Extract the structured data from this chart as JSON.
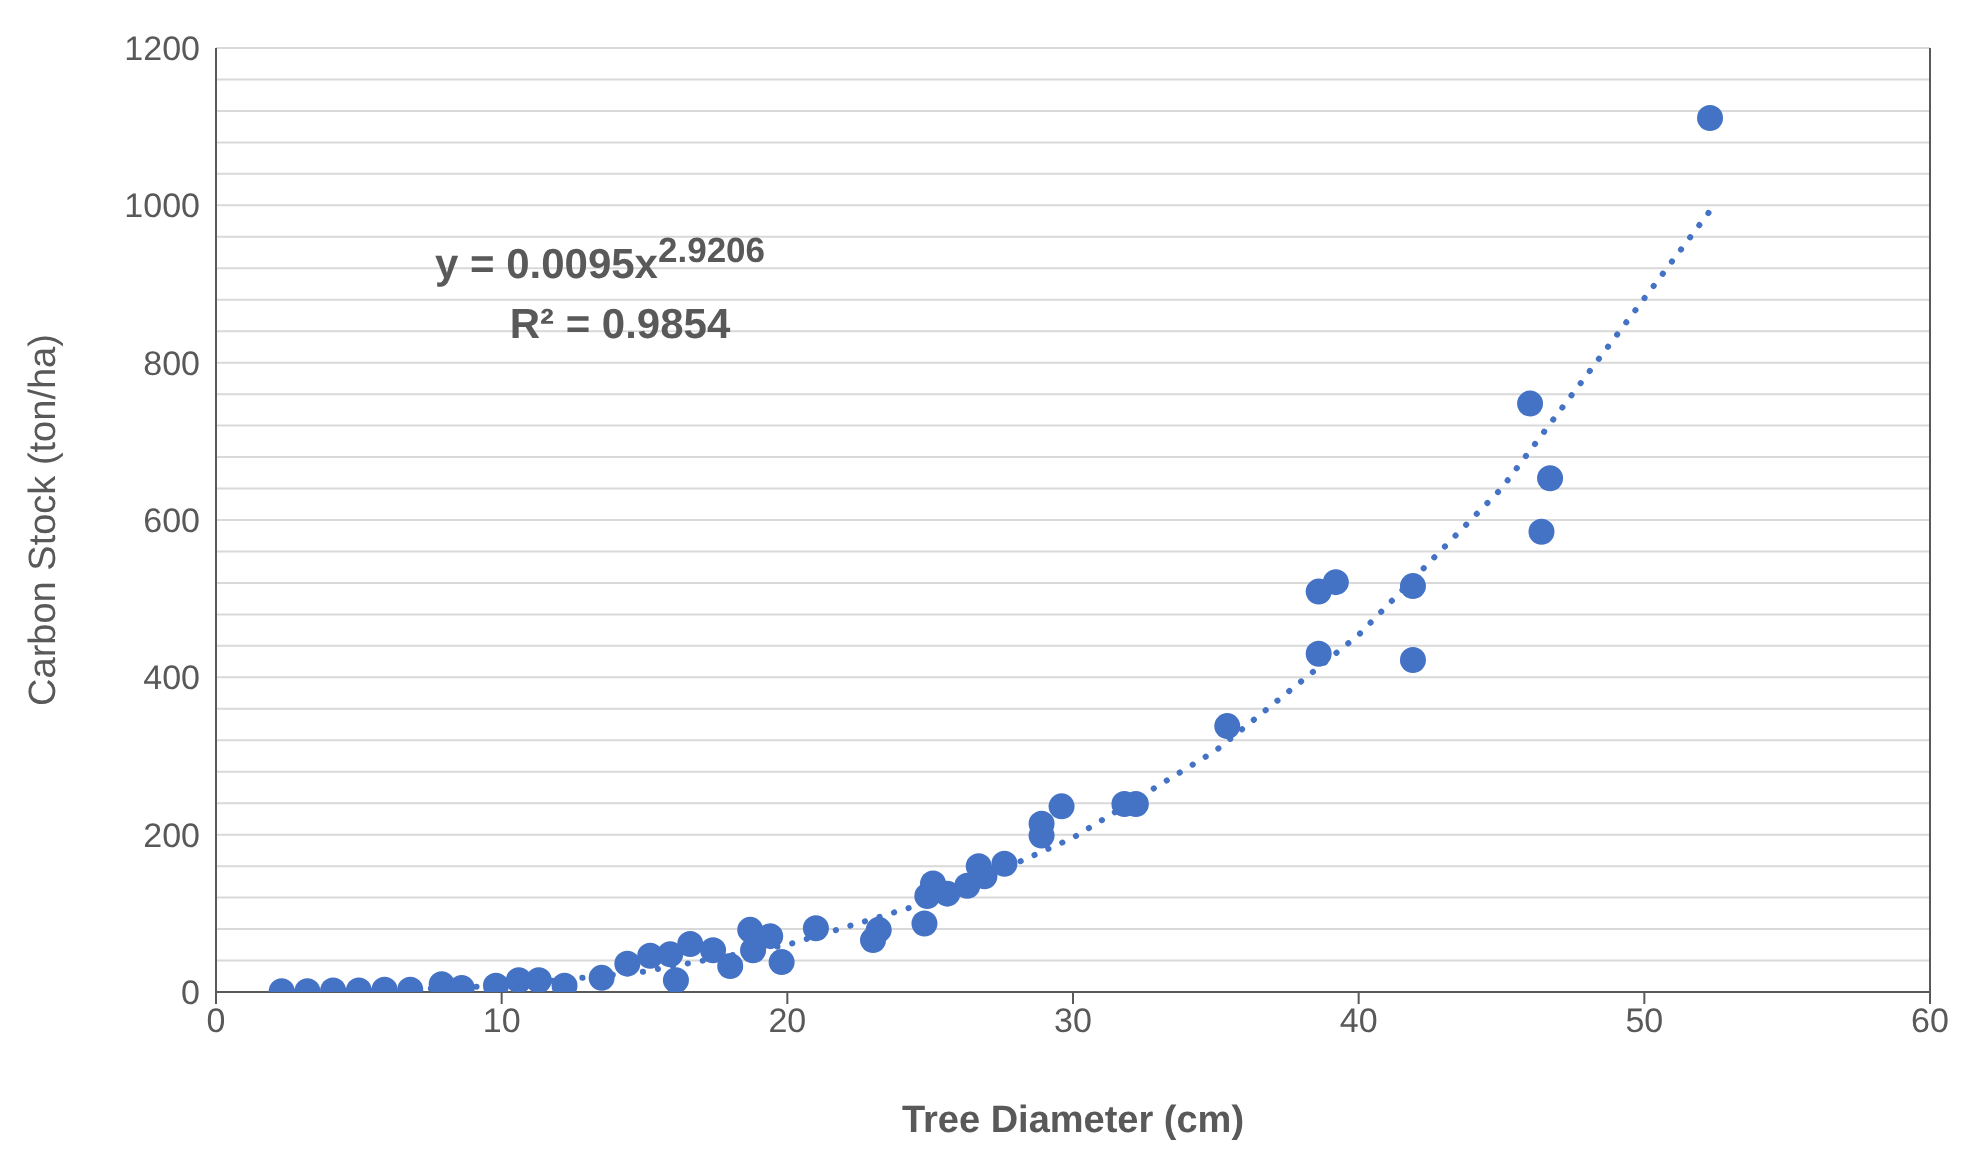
{
  "chart_data": {
    "type": "scatter",
    "xlabel": "Tree Diameter (cm)",
    "ylabel": "Carbon Stock (ton/ha)",
    "annotations": [
      "y = 0.0095x$^{2.9206}$",
      "R² = 0.9854"
    ],
    "xlim": [
      0,
      60
    ],
    "xticks": [
      0,
      10,
      20,
      30,
      40,
      50,
      60
    ],
    "ylim": [
      0,
      1200
    ],
    "yticks": [
      0,
      {
        "value": 40,
        "label": null
      },
      {
        "value": 80,
        "label": null
      },
      {
        "value": 120,
        "label": null
      },
      {
        "value": 160,
        "label": null
      },
      200,
      {
        "value": 240,
        "label": null
      },
      {
        "value": 280,
        "label": null
      },
      {
        "value": 320,
        "label": null
      },
      {
        "value": 360,
        "label": null
      },
      400,
      {
        "value": 440,
        "label": null
      },
      {
        "value": 480,
        "label": null
      },
      {
        "value": 520,
        "label": null
      },
      {
        "value": 560,
        "label": null
      },
      600,
      {
        "value": 640,
        "label": null
      },
      {
        "value": 680,
        "label": null
      },
      {
        "value": 720,
        "label": null
      },
      {
        "value": 760,
        "label": null
      },
      800,
      {
        "value": 840,
        "label": null
      },
      {
        "value": 880,
        "label": null
      },
      {
        "value": 920,
        "label": null
      },
      {
        "value": 960,
        "label": null
      },
      1000,
      {
        "value": 1040,
        "label": null
      },
      {
        "value": 1080,
        "label": null
      },
      {
        "value": 1120,
        "label": null
      },
      {
        "value": 1160,
        "label": null
      },
      1200
    ],
    "grid": "y",
    "legend": false,
    "marker": "circle",
    "series": [
      {
        "color": "#4472c4",
        "x": [
          2.3,
          3.2,
          4.1,
          5.0,
          5.9,
          6.8,
          7.9,
          8.6,
          9.8,
          10.6,
          11.3,
          12.2,
          13.5,
          14.4,
          15.2,
          15.9,
          16.1,
          16.6,
          17.4,
          18.0,
          18.7,
          18.8,
          19.4,
          19.8,
          21.0,
          23.0,
          23.2,
          24.8,
          24.9,
          25.1,
          25.6,
          26.3,
          26.7,
          26.9,
          27.6,
          28.9,
          28.9,
          29.6,
          31.8,
          32.2,
          35.4,
          38.6,
          38.6,
          39.2,
          41.9,
          41.9,
          46.0,
          46.4,
          46.7,
          52.3
        ],
        "values": [
          1,
          1,
          2,
          2,
          3,
          3,
          10,
          5,
          8,
          15,
          15,
          8,
          18,
          36,
          46,
          48,
          15,
          61,
          53,
          33,
          79,
          53,
          71,
          38,
          81,
          66,
          79,
          87,
          122,
          138,
          125,
          135,
          160,
          147,
          163,
          214,
          199,
          236,
          239,
          239,
          338,
          509,
          430,
          521,
          516,
          422,
          748,
          585,
          653,
          1111
        ]
      },
      {
        "type": "line",
        "color": "#4472c4",
        "line_style": "dotted",
        "marker": "none",
        "x": [
          2.2,
          5,
          10,
          15,
          20,
          25,
          30,
          35,
          40,
          45,
          52.3
        ],
        "values": [
          0,
          1,
          8,
          26,
          60,
          115,
          196,
          307,
          454,
          640,
          993
        ]
      }
    ]
  }
}
